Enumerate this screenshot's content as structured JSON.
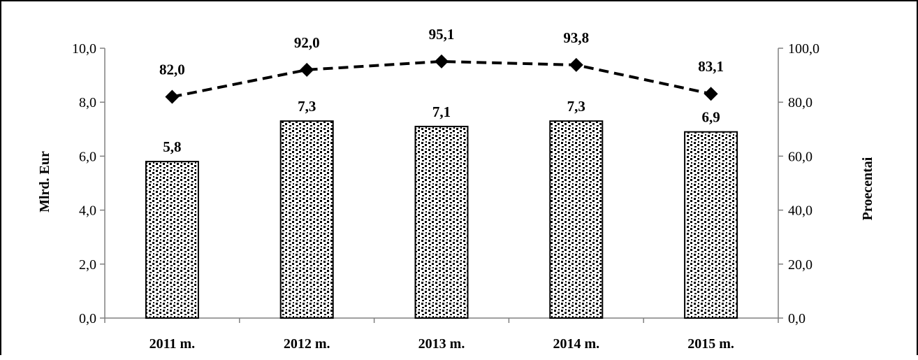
{
  "chart_data": {
    "type": "bar",
    "categories": [
      "2011 m.",
      "2012 m.",
      "2013 m.",
      "2014 m.",
      "2015 m."
    ],
    "series": [
      {
        "type": "bar",
        "axis": "left",
        "values": [
          5.8,
          7.3,
          7.1,
          7.3,
          6.9
        ],
        "labels": [
          "5,8",
          "7,3",
          "7,1",
          "7,3",
          "6,9"
        ],
        "pattern": "dotted"
      },
      {
        "type": "line",
        "axis": "right",
        "style": "dashed",
        "marker": "diamond",
        "values": [
          82.0,
          92.0,
          95.1,
          93.8,
          83.1
        ],
        "labels": [
          "82,0",
          "92,0",
          "95,1",
          "93,8",
          "83,1"
        ]
      }
    ],
    "ylabel": "Mlrd. Eur",
    "ylabel_right": "Proecentai",
    "ylim": [
      0,
      10
    ],
    "ylim_right": [
      0,
      100
    ],
    "yticks": [
      "0,0",
      "2,0",
      "4,0",
      "6,0",
      "8,0",
      "10,0"
    ],
    "yticks_right": [
      "0,0",
      "20,0",
      "40,0",
      "60,0",
      "80,0",
      "100,0"
    ],
    "grid": false,
    "colors": {
      "bar_fill": "#000000",
      "bar_background": "#ffffff",
      "line": "#000000"
    }
  }
}
